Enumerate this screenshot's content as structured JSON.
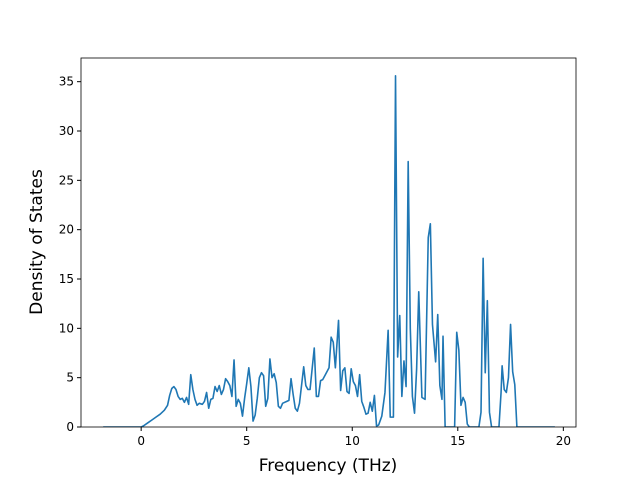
{
  "chart_data": {
    "type": "line",
    "xlabel": "Frequency (THz)",
    "ylabel": "Density of States",
    "xlim": [
      -2.85,
      20.6
    ],
    "ylim": [
      0,
      37.4
    ],
    "xticks": [
      0,
      5,
      10,
      15,
      20
    ],
    "yticks": [
      0,
      5,
      10,
      15,
      20,
      25,
      30,
      35
    ],
    "grid": false,
    "series": [
      {
        "color": "#1f77b4",
        "x": [
          -1.8,
          0,
          0.1,
          0.3,
          0.5,
          0.7,
          0.9,
          1.1,
          1.25,
          1.35,
          1.45,
          1.55,
          1.65,
          1.75,
          1.85,
          1.95,
          2.05,
          2.15,
          2.25,
          2.35,
          2.45,
          2.55,
          2.65,
          2.75,
          2.9,
          3.0,
          3.1,
          3.2,
          3.3,
          3.4,
          3.5,
          3.6,
          3.7,
          3.8,
          3.9,
          4.0,
          4.1,
          4.2,
          4.3,
          4.4,
          4.5,
          4.6,
          4.7,
          4.8,
          4.9,
          5.0,
          5.1,
          5.2,
          5.3,
          5.4,
          5.5,
          5.6,
          5.7,
          5.8,
          5.9,
          6.0,
          6.1,
          6.2,
          6.3,
          6.4,
          6.5,
          6.6,
          6.7,
          6.8,
          6.9,
          7.0,
          7.1,
          7.2,
          7.3,
          7.4,
          7.5,
          7.7,
          7.8,
          7.9,
          8.0,
          8.2,
          8.3,
          8.4,
          8.5,
          8.6,
          8.7,
          8.9,
          9.0,
          9.1,
          9.2,
          9.35,
          9.45,
          9.55,
          9.65,
          9.75,
          9.85,
          9.95,
          10.05,
          10.15,
          10.25,
          10.35,
          10.45,
          10.55,
          10.65,
          10.75,
          10.85,
          10.95,
          11.05,
          11.15,
          11.25,
          11.4,
          11.55,
          11.7,
          11.8,
          11.95,
          12.05,
          12.15,
          12.25,
          12.35,
          12.45,
          12.55,
          12.65,
          12.75,
          12.85,
          12.95,
          13.05,
          13.15,
          13.3,
          13.45,
          13.6,
          13.7,
          13.8,
          13.95,
          14.05,
          14.15,
          14.25,
          14.3,
          14.4,
          14.85,
          14.95,
          15.05,
          15.15,
          15.25,
          15.35,
          15.45,
          15.55,
          16.0,
          16.1,
          16.2,
          16.3,
          16.4,
          16.5,
          16.6,
          16.95,
          17.05,
          17.1,
          17.2,
          17.3,
          17.4,
          17.5,
          17.6,
          17.7,
          17.8,
          19.6
        ],
        "values": [
          0,
          0,
          0.1,
          0.4,
          0.7,
          1.0,
          1.3,
          1.7,
          2.2,
          3.2,
          3.9,
          4.1,
          3.8,
          3.1,
          2.8,
          2.9,
          2.5,
          3.0,
          2.3,
          5.3,
          3.8,
          2.8,
          2.2,
          2.4,
          2.3,
          2.6,
          3.5,
          1.9,
          2.8,
          2.9,
          4.1,
          3.6,
          4.2,
          3.3,
          3.8,
          4.9,
          4.6,
          4.2,
          3.1,
          6.8,
          2.1,
          2.8,
          2.4,
          1.1,
          2.9,
          4.4,
          6.0,
          4.1,
          0.6,
          1.2,
          2.9,
          5.0,
          5.5,
          5.2,
          2.1,
          2.9,
          6.9,
          5.0,
          5.4,
          4.5,
          2.1,
          1.9,
          2.4,
          2.5,
          2.6,
          2.7,
          4.9,
          3.3,
          1.9,
          1.6,
          2.4,
          6.1,
          4.2,
          3.8,
          3.8,
          8.0,
          3.1,
          3.1,
          4.7,
          4.8,
          5.2,
          6.0,
          9.1,
          8.6,
          6.0,
          10.8,
          3.7,
          5.7,
          6.0,
          3.6,
          3.4,
          5.9,
          4.6,
          4.2,
          3.1,
          5.3,
          2.6,
          2.0,
          1.3,
          1.4,
          2.5,
          1.6,
          3.2,
          0.1,
          0.2,
          1.1,
          3.5,
          9.8,
          1.0,
          1.0,
          35.6,
          7.1,
          11.3,
          3.1,
          6.7,
          4.1,
          26.9,
          10.0,
          3.1,
          1.4,
          5.9,
          13.7,
          3.0,
          2.8,
          19.2,
          20.6,
          10.4,
          6.6,
          11.4,
          4.2,
          2.8,
          9.2,
          0,
          0,
          9.6,
          7.8,
          2.2,
          3.0,
          2.5,
          0.3,
          0,
          0,
          1.5,
          17.1,
          5.5,
          12.8,
          1.5,
          0,
          0,
          3.5,
          6.2,
          3.8,
          3.5,
          5.0,
          10.4,
          5.6,
          4.3,
          0,
          0
        ]
      }
    ]
  }
}
